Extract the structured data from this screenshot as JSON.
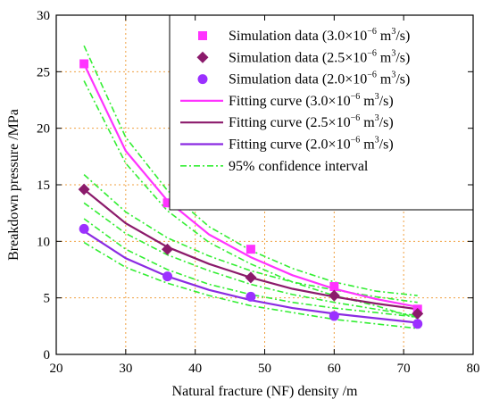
{
  "chart_data": {
    "type": "scatter",
    "xlabel": "Natural fracture (NF) density /m",
    "ylabel": "Breakdown pressure /MPa",
    "xlim": [
      20,
      80
    ],
    "ylim": [
      0,
      30
    ],
    "xticks": [
      20,
      30,
      40,
      50,
      60,
      70,
      80
    ],
    "yticks": [
      0,
      5,
      10,
      15,
      20,
      25,
      30
    ],
    "grid": "dotted-orange",
    "legend_position": "top-right",
    "points_series": [
      {
        "name": "Simulation data (3.0×10⁻⁶ m³/s)",
        "marker": "square",
        "color": "#ff33ff",
        "x": [
          24,
          36,
          48,
          60,
          72
        ],
        "y": [
          25.7,
          13.4,
          9.3,
          6.0,
          4.0
        ]
      },
      {
        "name": "Simulation data (2.5×10⁻⁶ m³/s)",
        "marker": "diamond",
        "color": "#8b1a6b",
        "x": [
          24,
          36,
          48,
          60,
          72
        ],
        "y": [
          14.6,
          9.3,
          6.8,
          5.2,
          3.6
        ]
      },
      {
        "name": "Simulation data (2.0×10⁻⁶ m³/s)",
        "marker": "circle",
        "color": "#9b30ff",
        "x": [
          24,
          36,
          48,
          60,
          72
        ],
        "y": [
          11.1,
          6.9,
          5.1,
          3.4,
          2.7
        ]
      }
    ],
    "fit_series": [
      {
        "name": "Fitting curve (3.0×10⁻⁶ m³/s)",
        "color": "#ff33ff",
        "x": [
          24,
          30,
          36,
          42,
          48,
          54,
          60,
          66,
          72
        ],
        "y": [
          25.7,
          18.0,
          13.6,
          10.6,
          8.6,
          7.0,
          5.8,
          4.9,
          4.2
        ]
      },
      {
        "name": "Fitting curve (2.5×10⁻⁶ m³/s)",
        "color": "#8b1a6b",
        "x": [
          24,
          30,
          36,
          42,
          48,
          54,
          60,
          66,
          72
        ],
        "y": [
          14.6,
          11.6,
          9.5,
          8.0,
          6.8,
          5.8,
          5.1,
          4.5,
          4.0
        ]
      },
      {
        "name": "Fitting curve (2.0×10⁻⁶ m³/s)",
        "color": "#8b2be2",
        "x": [
          24,
          30,
          36,
          42,
          48,
          54,
          60,
          66,
          72
        ],
        "y": [
          10.9,
          8.5,
          6.9,
          5.7,
          4.8,
          4.1,
          3.6,
          3.2,
          2.8
        ]
      }
    ],
    "confidence_band": {
      "name": "95% confidence interval",
      "color": "#33ee33",
      "bands": [
        {
          "x": [
            24,
            30,
            36,
            42,
            48,
            54,
            60,
            66,
            72
          ],
          "upper": [
            27.3,
            19.2,
            14.5,
            11.3,
            9.2,
            7.6,
            6.4,
            5.6,
            5.2
          ],
          "lower": [
            24.2,
            16.9,
            12.7,
            9.9,
            8.0,
            6.4,
            5.2,
            4.3,
            3.2
          ]
        },
        {
          "x": [
            24,
            30,
            36,
            42,
            48,
            54,
            60,
            66,
            72
          ],
          "upper": [
            15.9,
            12.6,
            10.3,
            8.7,
            7.4,
            6.4,
            5.7,
            5.1,
            4.6
          ],
          "lower": [
            13.4,
            10.7,
            8.8,
            7.4,
            6.2,
            5.3,
            4.6,
            4.0,
            3.4
          ]
        },
        {
          "x": [
            24,
            30,
            36,
            42,
            48,
            54,
            60,
            66,
            72
          ],
          "upper": [
            12.0,
            9.3,
            7.5,
            6.2,
            5.3,
            4.6,
            4.1,
            3.7,
            3.3
          ],
          "lower": [
            9.9,
            7.7,
            6.3,
            5.2,
            4.3,
            3.7,
            3.1,
            2.7,
            2.3
          ]
        }
      ]
    }
  },
  "legend": [
    {
      "marker": "square",
      "color": "#ff33ff",
      "text": "Simulation data (3.0×10",
      "sup": "−6",
      "unit": " m",
      "unit_sup": "3",
      "tail": "/s)"
    },
    {
      "marker": "diamond",
      "color": "#8b1a6b",
      "text": "Simulation data (2.5×10",
      "sup": "−6",
      "unit": " m",
      "unit_sup": "3",
      "tail": "/s)"
    },
    {
      "marker": "circle",
      "color": "#9b30ff",
      "text": "Simulation data (2.0×10",
      "sup": "−6",
      "unit": " m",
      "unit_sup": "3",
      "tail": "/s)"
    },
    {
      "marker": "line",
      "color": "#ff33ff",
      "text": "Fitting curve (3.0×10",
      "sup": "−6",
      "unit": " m",
      "unit_sup": "3",
      "tail": "/s)"
    },
    {
      "marker": "line",
      "color": "#8b1a6b",
      "text": "Fitting curve (2.5×10",
      "sup": "−6",
      "unit": " m",
      "unit_sup": "3",
      "tail": "/s)"
    },
    {
      "marker": "line",
      "color": "#8b2be2",
      "text": "Fitting curve (2.0×10",
      "sup": "−6",
      "unit": " m",
      "unit_sup": "3",
      "tail": "/s)"
    },
    {
      "marker": "dashdot",
      "color": "#33ee33",
      "text": "95% confidence interval",
      "sup": "",
      "unit": "",
      "unit_sup": "",
      "tail": ""
    }
  ]
}
